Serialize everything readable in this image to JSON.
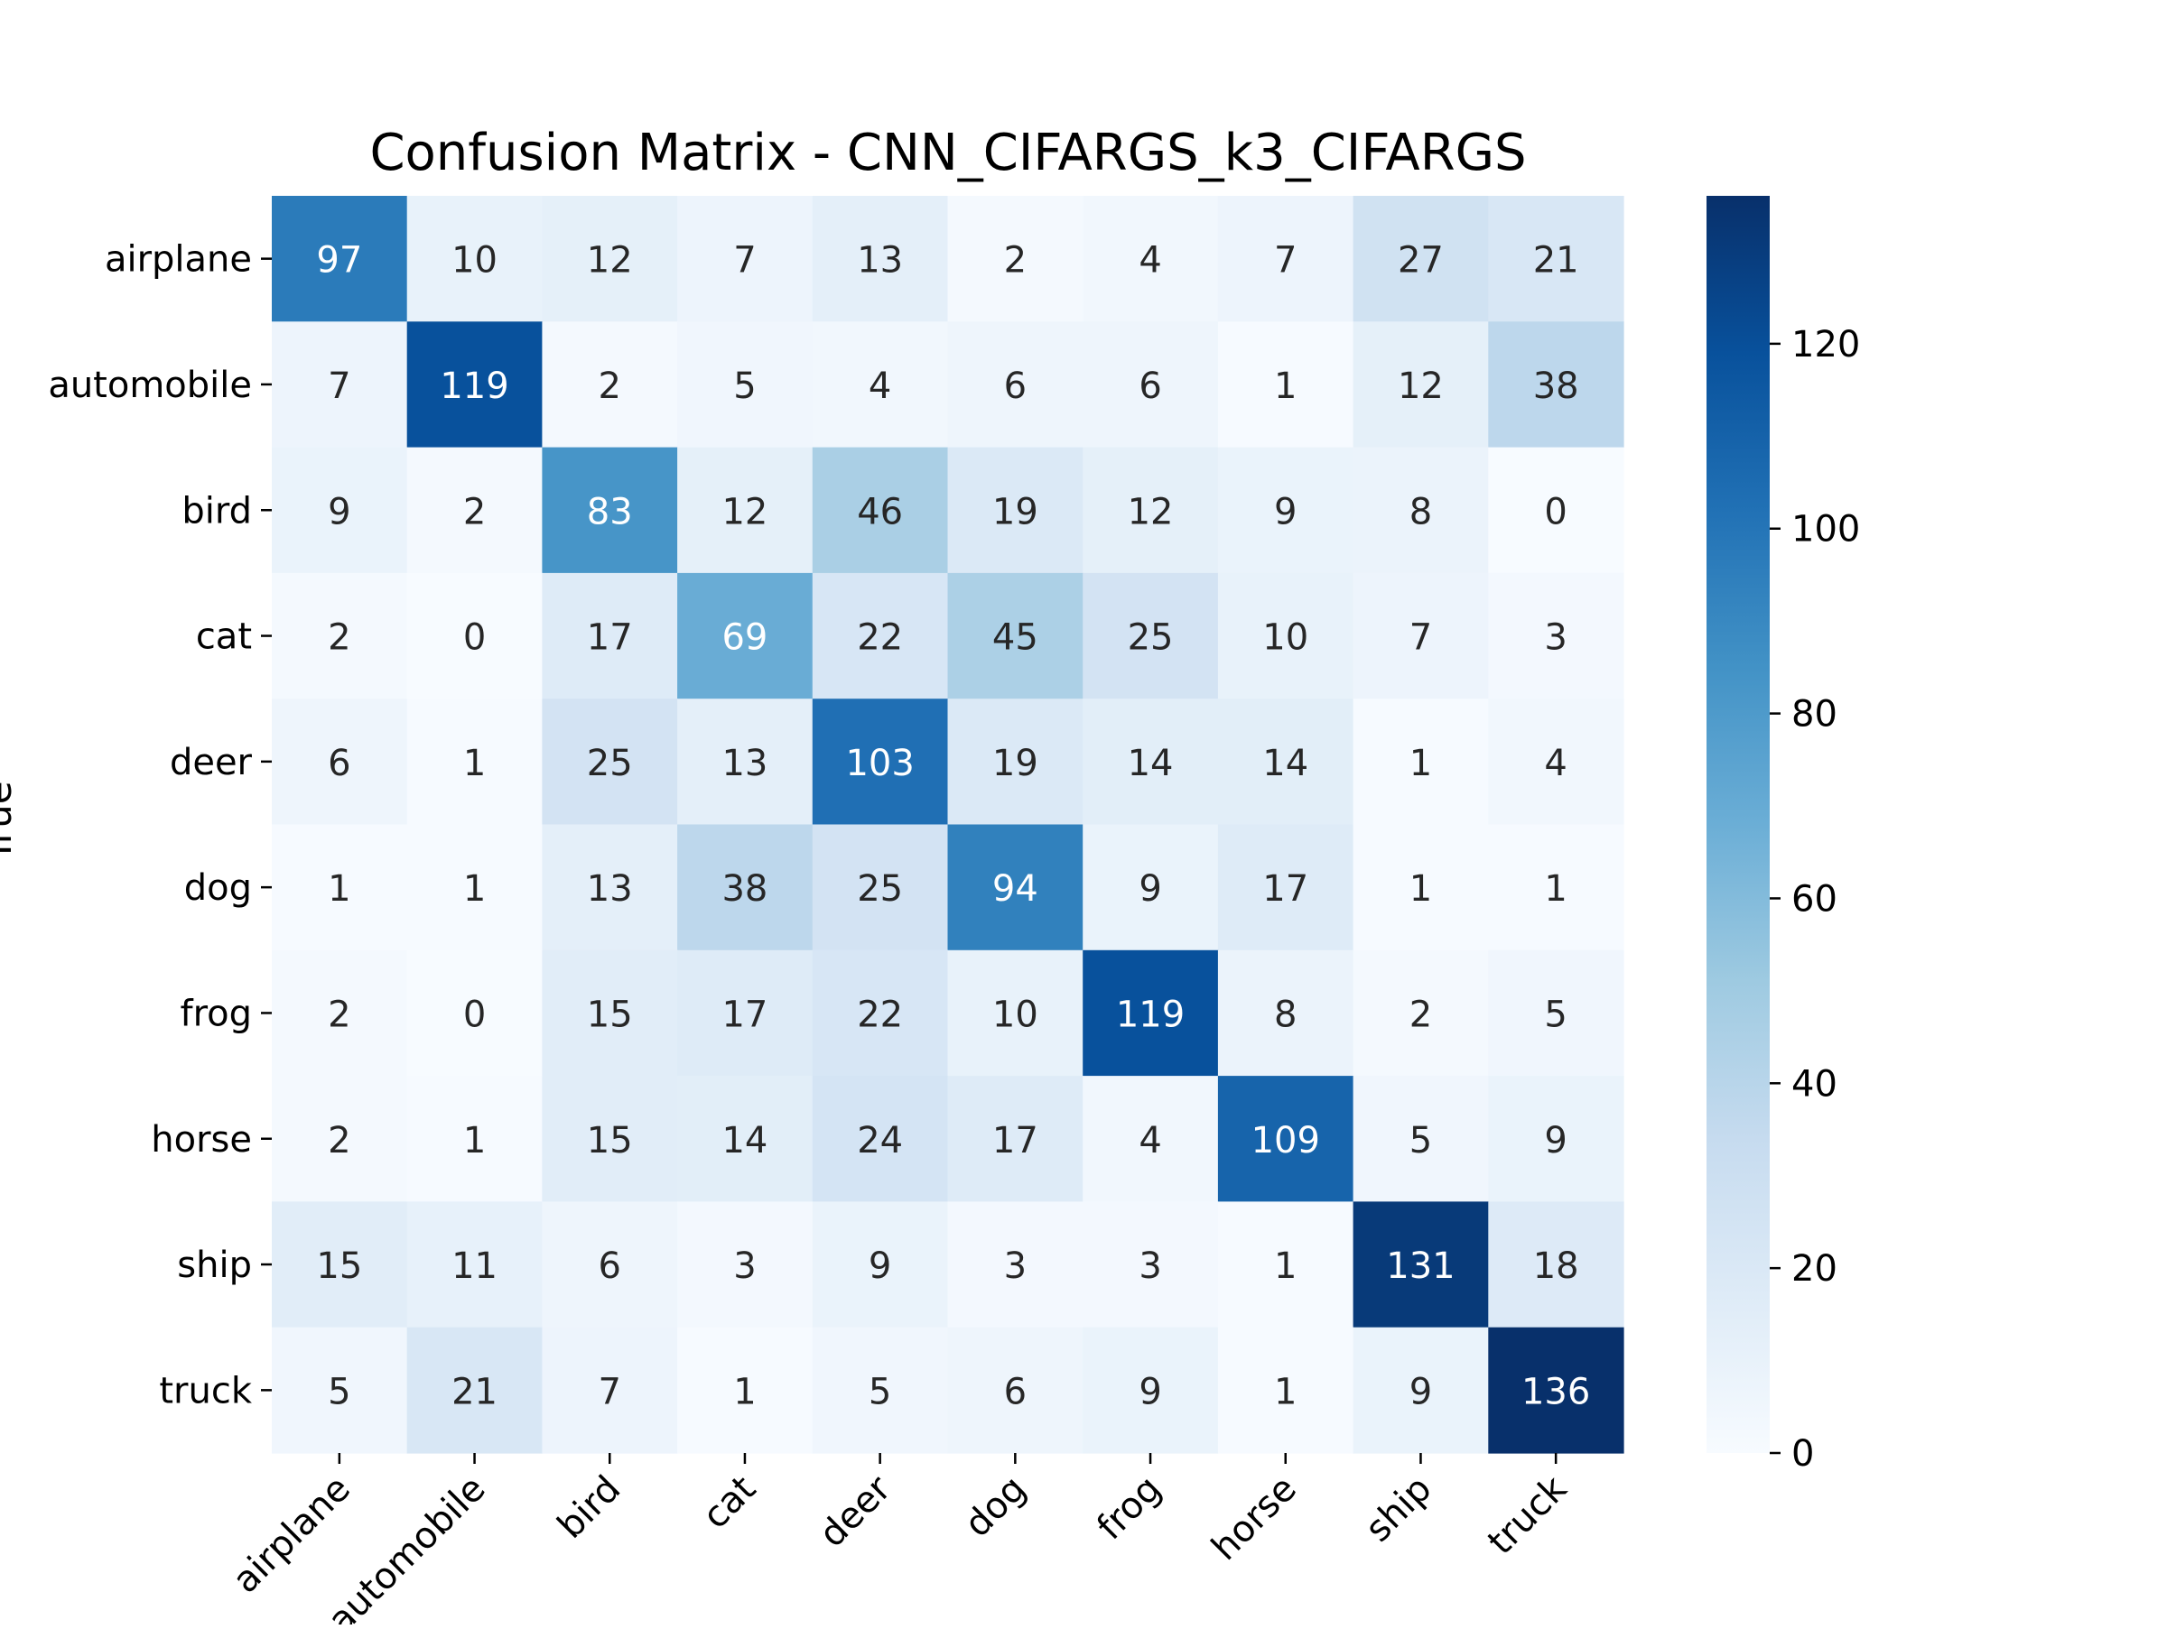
{
  "chart_data": {
    "type": "heatmap",
    "title": "Confusion Matrix - CNN_CIFARGS_k3_CIFARGS",
    "ylabel": "True",
    "xlabel": "",
    "categories": [
      "airplane",
      "automobile",
      "bird",
      "cat",
      "deer",
      "dog",
      "frog",
      "horse",
      "ship",
      "truck"
    ],
    "matrix": [
      [
        97,
        10,
        12,
        7,
        13,
        2,
        4,
        7,
        27,
        21
      ],
      [
        7,
        119,
        2,
        5,
        4,
        6,
        6,
        1,
        12,
        38
      ],
      [
        9,
        2,
        83,
        12,
        46,
        19,
        12,
        9,
        8,
        0
      ],
      [
        2,
        0,
        17,
        69,
        22,
        45,
        25,
        10,
        7,
        3
      ],
      [
        6,
        1,
        25,
        13,
        103,
        19,
        14,
        14,
        1,
        4
      ],
      [
        1,
        1,
        13,
        38,
        25,
        94,
        9,
        17,
        1,
        1
      ],
      [
        2,
        0,
        15,
        17,
        22,
        10,
        119,
        8,
        2,
        5
      ],
      [
        2,
        1,
        15,
        14,
        24,
        17,
        4,
        109,
        5,
        9
      ],
      [
        15,
        11,
        6,
        3,
        9,
        3,
        3,
        1,
        131,
        18
      ],
      [
        5,
        21,
        7,
        1,
        5,
        6,
        9,
        1,
        9,
        136
      ]
    ],
    "colorbar": {
      "colormap": "Blues",
      "range": [
        0,
        136
      ],
      "ticks": [
        0,
        20,
        40,
        60,
        80,
        100,
        120
      ]
    }
  }
}
